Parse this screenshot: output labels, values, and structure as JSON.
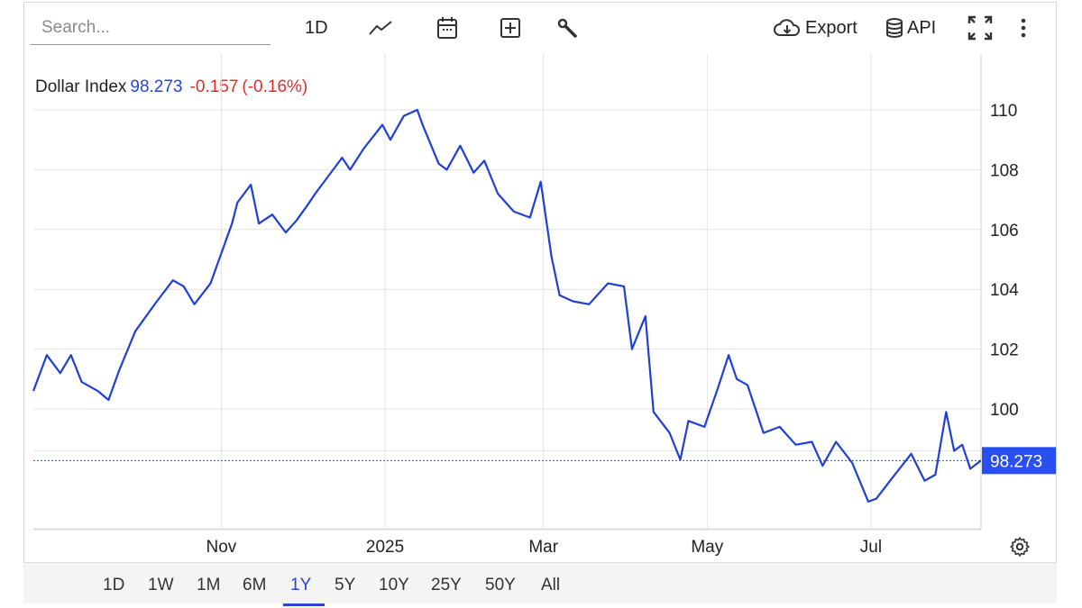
{
  "toolbar": {
    "search_placeholder": "Search...",
    "interval_label": "1D",
    "export_label": "Export",
    "api_label": "API",
    "icons": [
      "line-chart-icon",
      "calendar-icon",
      "add-compare-icon",
      "wrench-icon",
      "cloud-download-icon",
      "database-icon",
      "fullscreen-icon",
      "more-vertical-icon"
    ]
  },
  "legend": {
    "name": "Dollar Index",
    "value": "98.273",
    "change": "-0.157",
    "change_pct": "(-0.16%)"
  },
  "price_tag": "98.273",
  "range_buttons": [
    "1D",
    "1W",
    "1M",
    "6M",
    "1Y",
    "5Y",
    "10Y",
    "25Y",
    "50Y",
    "All"
  ],
  "active_range": "1Y",
  "colors": {
    "line": "#1f3fd6",
    "price_tag": "#2a4ff0",
    "negative": "#d9302c",
    "grid": "#e3e3e3"
  },
  "chart_data": {
    "type": "line",
    "title": "Dollar Index",
    "xlabel": "",
    "ylabel": "",
    "x_tick_labels": [
      "Nov",
      "2025",
      "Mar",
      "May",
      "Jul"
    ],
    "y_ticks": [
      100,
      102,
      104,
      106,
      108,
      110
    ],
    "ylim": [
      96.0,
      111.0
    ],
    "xlim": [
      "2024-08-23",
      "2025-08-11"
    ],
    "grid": true,
    "last_value": 98.273,
    "series": [
      {
        "name": "Dollar Index",
        "x": [
          "2024-08-23",
          "2024-08-28",
          "2024-09-02",
          "2024-09-06",
          "2024-09-10",
          "2024-09-16",
          "2024-09-20",
          "2024-09-24",
          "2024-09-30",
          "2024-10-04",
          "2024-10-08",
          "2024-10-14",
          "2024-10-18",
          "2024-10-22",
          "2024-10-28",
          "2024-11-01",
          "2024-11-05",
          "2024-11-07",
          "2024-11-12",
          "2024-11-15",
          "2024-11-20",
          "2024-11-25",
          "2024-11-29",
          "2024-12-03",
          "2024-12-06",
          "2024-12-11",
          "2024-12-16",
          "2024-12-19",
          "2024-12-24",
          "2024-12-31",
          "2025-01-03",
          "2025-01-08",
          "2025-01-13",
          "2025-01-15",
          "2025-01-21",
          "2025-01-24",
          "2025-01-29",
          "2025-02-03",
          "2025-02-07",
          "2025-02-12",
          "2025-02-18",
          "2025-02-24",
          "2025-02-28",
          "2025-03-04",
          "2025-03-07",
          "2025-03-12",
          "2025-03-18",
          "2025-03-25",
          "2025-03-31",
          "2025-04-03",
          "2025-04-08",
          "2025-04-11",
          "2025-04-17",
          "2025-04-21",
          "2025-04-24",
          "2025-04-30",
          "2025-05-05",
          "2025-05-09",
          "2025-05-12",
          "2025-05-16",
          "2025-05-22",
          "2025-05-28",
          "2025-06-03",
          "2025-06-09",
          "2025-06-13",
          "2025-06-18",
          "2025-06-24",
          "2025-06-30",
          "2025-07-03",
          "2025-07-09",
          "2025-07-16",
          "2025-07-21",
          "2025-07-25",
          "2025-07-29",
          "2025-08-01",
          "2025-08-04",
          "2025-08-07",
          "2025-08-11"
        ],
        "values": [
          100.6,
          101.8,
          101.2,
          101.8,
          100.9,
          100.6,
          100.3,
          101.3,
          102.6,
          103.1,
          103.6,
          104.3,
          104.1,
          103.5,
          104.2,
          105.2,
          106.2,
          106.9,
          107.5,
          106.2,
          106.5,
          105.9,
          106.3,
          106.8,
          107.2,
          107.8,
          108.4,
          108.0,
          108.7,
          109.5,
          109.0,
          109.8,
          110.0,
          109.5,
          108.2,
          108.0,
          108.8,
          107.9,
          108.3,
          107.2,
          106.6,
          106.4,
          107.6,
          105.1,
          103.8,
          103.6,
          103.5,
          104.2,
          104.1,
          102.0,
          103.1,
          99.9,
          99.2,
          98.3,
          99.6,
          99.4,
          100.7,
          101.8,
          101.0,
          100.8,
          99.2,
          99.4,
          98.8,
          98.9,
          98.1,
          98.9,
          98.2,
          96.9,
          97.0,
          97.7,
          98.5,
          97.6,
          97.8,
          99.9,
          98.6,
          98.8,
          98.0,
          98.273
        ]
      }
    ]
  }
}
